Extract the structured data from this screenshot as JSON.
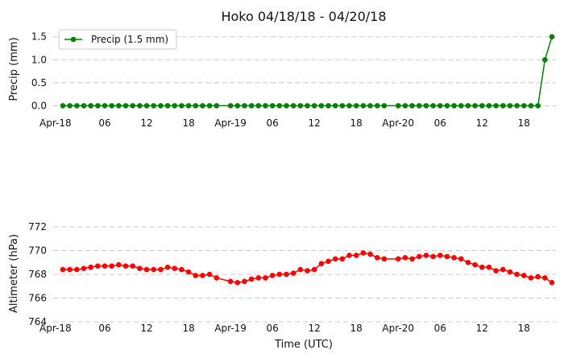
{
  "chart_data": [
    {
      "type": "line",
      "title": "Hoko 04/18/18 - 04/20/18",
      "ylabel": "Precip (mm)",
      "xlabel": "",
      "x_tick_labels": [
        "Apr-18",
        "06",
        "12",
        "18",
        "Apr-19",
        "06",
        "12",
        "18",
        "Apr-20",
        "06",
        "12",
        "18"
      ],
      "ylim": [
        -0.15,
        1.6
      ],
      "yticks": [
        "0.0",
        "0.5",
        "1.0",
        "1.5"
      ],
      "grid": "horizontal-dashed",
      "legend": {
        "position": "top-left",
        "entries": [
          "Precip (1.5 mm)"
        ]
      },
      "series": [
        {
          "name": "Precip (1.5 mm)",
          "color": "#008000",
          "marker": "circle",
          "points": [
            [
              0,
              0
            ],
            [
              1,
              0
            ],
            [
              2,
              0
            ],
            [
              3,
              0
            ],
            [
              4,
              0
            ],
            [
              5,
              0
            ],
            [
              6,
              0
            ],
            [
              7,
              0
            ],
            [
              8,
              0
            ],
            [
              9,
              0
            ],
            [
              10,
              0
            ],
            [
              11,
              0
            ],
            [
              12,
              0
            ],
            [
              13,
              0
            ],
            [
              14,
              0
            ],
            [
              15,
              0
            ],
            [
              16,
              0
            ],
            [
              17,
              0
            ],
            [
              18,
              0
            ],
            [
              19,
              0
            ],
            [
              20,
              0
            ],
            [
              21,
              0
            ],
            [
              22,
              0
            ],
            [
              24,
              0
            ],
            [
              25,
              0
            ],
            [
              26,
              0
            ],
            [
              27,
              0
            ],
            [
              28,
              0
            ],
            [
              29,
              0
            ],
            [
              30,
              0
            ],
            [
              31,
              0
            ],
            [
              32,
              0
            ],
            [
              33,
              0
            ],
            [
              34,
              0
            ],
            [
              35,
              0
            ],
            [
              36,
              0
            ],
            [
              37,
              0
            ],
            [
              38,
              0
            ],
            [
              39,
              0
            ],
            [
              40,
              0
            ],
            [
              41,
              0
            ],
            [
              42,
              0
            ],
            [
              43,
              0
            ],
            [
              44,
              0
            ],
            [
              45,
              0
            ],
            [
              46,
              0
            ],
            [
              48,
              0
            ],
            [
              49,
              0
            ],
            [
              50,
              0
            ],
            [
              51,
              0
            ],
            [
              52,
              0
            ],
            [
              53,
              0
            ],
            [
              54,
              0
            ],
            [
              55,
              0
            ],
            [
              56,
              0
            ],
            [
              57,
              0
            ],
            [
              58,
              0
            ],
            [
              59,
              0
            ],
            [
              60,
              0
            ],
            [
              61,
              0
            ],
            [
              62,
              0
            ],
            [
              63,
              0
            ],
            [
              64,
              0
            ],
            [
              65,
              0
            ],
            [
              66,
              0
            ],
            [
              67,
              0
            ],
            [
              68,
              0
            ],
            [
              69,
              1.0
            ],
            [
              70,
              1.5
            ]
          ]
        }
      ]
    },
    {
      "type": "line",
      "title": "",
      "ylabel": "Altimeter (hPa)",
      "xlabel": "Time (UTC)",
      "x_tick_labels": [
        "Apr-18",
        "06",
        "12",
        "18",
        "Apr-19",
        "06",
        "12",
        "18",
        "Apr-20",
        "06",
        "12",
        "18"
      ],
      "ylim": [
        764,
        772
      ],
      "yticks": [
        "764",
        "766",
        "768",
        "770",
        "772"
      ],
      "grid": "horizontal-dashed",
      "series": [
        {
          "name": "",
          "color": "#ff0000",
          "marker": "circle",
          "points": [
            [
              0,
              768.4
            ],
            [
              1,
              768.4
            ],
            [
              2,
              768.4
            ],
            [
              3,
              768.5
            ],
            [
              4,
              768.6
            ],
            [
              5,
              768.7
            ],
            [
              6,
              768.7
            ],
            [
              7,
              768.7
            ],
            [
              8,
              768.8
            ],
            [
              9,
              768.7
            ],
            [
              10,
              768.7
            ],
            [
              11,
              768.5
            ],
            [
              12,
              768.4
            ],
            [
              13,
              768.4
            ],
            [
              14,
              768.4
            ],
            [
              15,
              768.6
            ],
            [
              16,
              768.5
            ],
            [
              17,
              768.4
            ],
            [
              18,
              768.2
            ],
            [
              19,
              767.9
            ],
            [
              20,
              767.9
            ],
            [
              21,
              768.0
            ],
            [
              22,
              767.7
            ],
            [
              24,
              767.4
            ],
            [
              25,
              767.3
            ],
            [
              26,
              767.4
            ],
            [
              27,
              767.6
            ],
            [
              28,
              767.7
            ],
            [
              29,
              767.7
            ],
            [
              30,
              767.9
            ],
            [
              31,
              768.0
            ],
            [
              32,
              768.0
            ],
            [
              33,
              768.1
            ],
            [
              34,
              768.4
            ],
            [
              35,
              768.3
            ],
            [
              36,
              768.4
            ],
            [
              37,
              768.9
            ],
            [
              38,
              769.1
            ],
            [
              39,
              769.3
            ],
            [
              40,
              769.3
            ],
            [
              41,
              769.6
            ],
            [
              42,
              769.6
            ],
            [
              43,
              769.8
            ],
            [
              44,
              769.7
            ],
            [
              45,
              769.4
            ],
            [
              46,
              769.3
            ],
            [
              48,
              769.3
            ],
            [
              49,
              769.4
            ],
            [
              50,
              769.3
            ],
            [
              51,
              769.5
            ],
            [
              52,
              769.6
            ],
            [
              53,
              769.5
            ],
            [
              54,
              769.6
            ],
            [
              55,
              769.5
            ],
            [
              56,
              769.4
            ],
            [
              57,
              769.3
            ],
            [
              58,
              769.0
            ],
            [
              59,
              768.8
            ],
            [
              60,
              768.6
            ],
            [
              61,
              768.6
            ],
            [
              62,
              768.3
            ],
            [
              63,
              768.4
            ],
            [
              64,
              768.2
            ],
            [
              65,
              768.0
            ],
            [
              66,
              767.9
            ],
            [
              67,
              767.7
            ],
            [
              68,
              767.8
            ],
            [
              69,
              767.7
            ],
            [
              70,
              767.3
            ]
          ]
        }
      ]
    }
  ]
}
